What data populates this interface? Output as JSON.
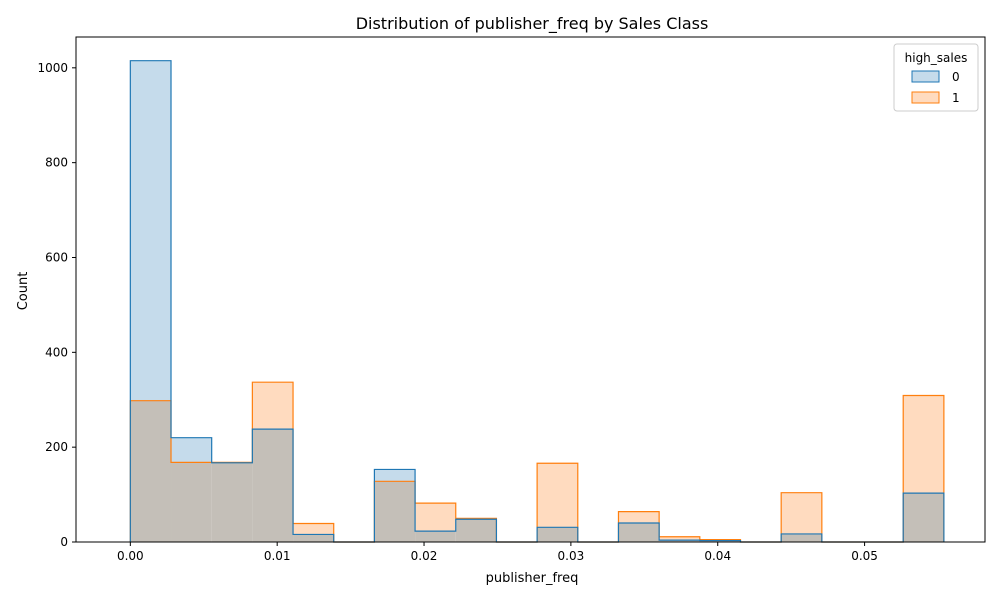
{
  "chart_data": {
    "type": "histogram",
    "title": "Distribution of publisher_freq by Sales Class",
    "xlabel": "publisher_freq",
    "ylabel": "Count",
    "xlim": [
      -0.0037,
      0.0582
    ],
    "ylim": [
      0,
      1065
    ],
    "x_ticks": [
      0.0,
      0.01,
      0.02,
      0.03,
      0.04,
      0.05
    ],
    "x_tick_labels": [
      "0.00",
      "0.01",
      "0.02",
      "0.03",
      "0.04",
      "0.05"
    ],
    "y_ticks": [
      0,
      200,
      400,
      600,
      800,
      1000
    ],
    "y_tick_labels": [
      "0",
      "200",
      "400",
      "600",
      "800",
      "1000"
    ],
    "bin_start": 0.0,
    "bin_width": 0.00277,
    "grid": false,
    "legend": {
      "title": "high_sales",
      "placement": "top-right"
    },
    "series": [
      {
        "name": "0",
        "fill": "#c5dbeb",
        "stroke": "#1f77b4",
        "values": [
          1015,
          220,
          167,
          238,
          16,
          0,
          153,
          23,
          48,
          0,
          31,
          0,
          40,
          4,
          3,
          0,
          17,
          0,
          0,
          103
        ]
      },
      {
        "name": "1",
        "fill": "#ffdbbf",
        "stroke": "#ff7f0e",
        "values": [
          298,
          168,
          168,
          337,
          39,
          0,
          128,
          82,
          50,
          0,
          166,
          0,
          64,
          11,
          5,
          0,
          104,
          0,
          0,
          309
        ]
      }
    ],
    "overlap_fill": "#c4bfb8"
  }
}
